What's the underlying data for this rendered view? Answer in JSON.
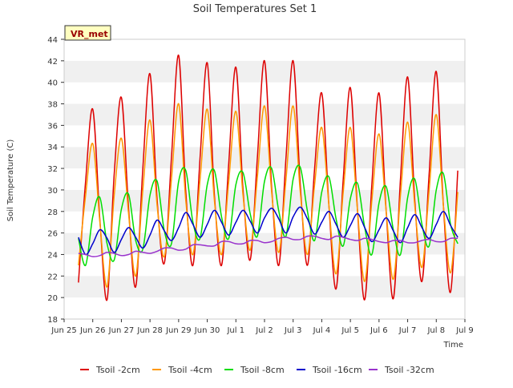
{
  "chart_data": {
    "type": "line",
    "title": "Soil Temperatures Set 1",
    "xlabel": "Time",
    "ylabel": "Soil Temperature (C)",
    "station_label": "VR_met",
    "x_ticks": [
      "Jun 25",
      "Jun 26",
      "Jun 27",
      "Jun 28",
      "Jun 29",
      "Jun 30",
      "Jul 1",
      "Jul 2",
      "Jul 3",
      "Jul 4",
      "Jul 5",
      "Jul 6",
      "Jul 7",
      "Jul 8",
      "Jul 9"
    ],
    "x_range": [
      "2023-06-25T00:00",
      "2023-07-09T00:00"
    ],
    "y_ticks": [
      18,
      20,
      22,
      24,
      26,
      28,
      30,
      32,
      34,
      36,
      38,
      40,
      42,
      44
    ],
    "ylim": [
      18,
      44
    ],
    "grid": "horizontal bands",
    "legend_position": "bottom",
    "x_start": "2023-06-25T12:00",
    "x_step_hours": 6,
    "series": [
      {
        "name": "Tsoil -2cm",
        "color": "#dd0000",
        "values": [
          21.4,
          30.8,
          37.5,
          27.2,
          19.8,
          31.5,
          38.6,
          28.3,
          21.0,
          32.0,
          40.8,
          29.0,
          23.2,
          33.0,
          42.5,
          29.8,
          23.0,
          33.0,
          41.8,
          29.5,
          23.0,
          32.5,
          41.4,
          30.0,
          23.5,
          33.0,
          42.0,
          30.2,
          23.0,
          33.0,
          42.0,
          30.5,
          23.0,
          32.0,
          39.0,
          28.5,
          20.8,
          31.0,
          39.5,
          28.0,
          19.8,
          30.5,
          39.0,
          28.0,
          19.9,
          31.0,
          40.5,
          29.0,
          21.5,
          31.5,
          41.0,
          28.5,
          20.5,
          31.8
        ]
      },
      {
        "name": "Tsoil -4cm",
        "color": "#ff9900",
        "values": [
          23.0,
          29.5,
          34.3,
          27.0,
          21.0,
          29.5,
          34.8,
          27.8,
          22.0,
          30.0,
          36.5,
          28.5,
          23.8,
          31.0,
          38.0,
          29.0,
          24.0,
          31.0,
          37.5,
          29.0,
          24.0,
          30.8,
          37.3,
          29.5,
          24.4,
          31.2,
          37.8,
          29.8,
          24.2,
          31.0,
          37.8,
          29.8,
          24.0,
          30.5,
          35.8,
          28.5,
          22.2,
          29.8,
          35.8,
          28.0,
          21.5,
          29.0,
          35.2,
          28.0,
          21.7,
          29.5,
          36.3,
          28.5,
          22.8,
          30.0,
          37.0,
          28.5,
          22.3,
          29.8
        ]
      },
      {
        "name": "Tsoil -8cm",
        "color": "#00dd00",
        "values": [
          25.5,
          23.0,
          27.5,
          29.3,
          25.0,
          23.5,
          28.2,
          29.6,
          25.3,
          24.5,
          29.5,
          30.8,
          26.2,
          25.0,
          30.8,
          31.8,
          27.0,
          25.5,
          30.5,
          31.8,
          27.5,
          25.5,
          30.5,
          31.6,
          27.8,
          25.7,
          30.8,
          32.0,
          28.0,
          25.7,
          31.0,
          32.1,
          28.0,
          25.3,
          29.8,
          31.2,
          27.3,
          24.8,
          29.2,
          30.6,
          26.5,
          24.0,
          28.8,
          30.3,
          26.3,
          24.0,
          29.3,
          31.0,
          26.8,
          24.8,
          30.0,
          31.5,
          26.8,
          25.0
        ]
      },
      {
        "name": "Tsoil -16cm",
        "color": "#0000cc",
        "values": [
          25.6,
          24.0,
          25.0,
          26.3,
          25.5,
          24.2,
          25.4,
          26.5,
          25.6,
          24.6,
          25.8,
          27.2,
          26.2,
          25.3,
          26.5,
          27.9,
          26.8,
          25.6,
          26.8,
          28.1,
          27.0,
          25.8,
          27.0,
          28.1,
          27.1,
          26.0,
          27.4,
          28.3,
          27.3,
          26.0,
          27.5,
          28.4,
          27.3,
          25.9,
          27.0,
          28.0,
          26.8,
          25.6,
          26.7,
          27.8,
          26.5,
          25.2,
          26.3,
          27.4,
          26.2,
          25.1,
          26.5,
          27.7,
          26.5,
          25.5,
          26.8,
          28.0,
          26.7,
          25.6
        ]
      },
      {
        "name": "Tsoil -32cm",
        "color": "#9933cc",
        "values": [
          24.1,
          24.0,
          23.8,
          23.9,
          24.2,
          24.1,
          23.9,
          24.0,
          24.3,
          24.2,
          24.1,
          24.3,
          24.6,
          24.6,
          24.4,
          24.5,
          24.9,
          24.9,
          24.8,
          24.8,
          25.2,
          25.2,
          25.0,
          25.0,
          25.3,
          25.3,
          25.1,
          25.2,
          25.5,
          25.6,
          25.4,
          25.4,
          25.7,
          25.7,
          25.5,
          25.4,
          25.7,
          25.6,
          25.4,
          25.3,
          25.5,
          25.4,
          25.2,
          25.1,
          25.3,
          25.3,
          25.1,
          25.1,
          25.3,
          25.4,
          25.2,
          25.2,
          25.5,
          25.5
        ]
      }
    ]
  }
}
